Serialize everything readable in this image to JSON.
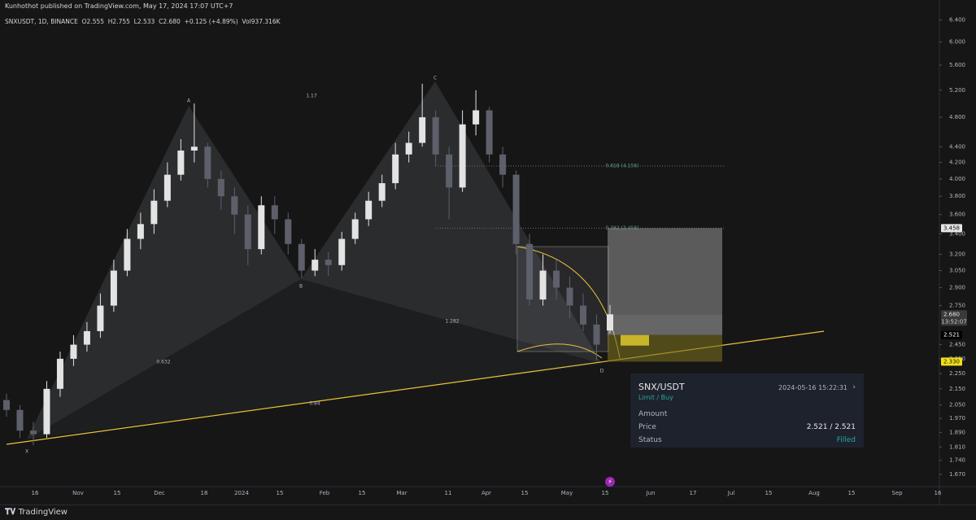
{
  "header": {
    "publisher": "Kunhothot published on TradingView.com, May 17, 2024 17:07 UTC+7",
    "symbol_line": "SNXUSDT, 1D, BINANCE  O2.555  H2.755  L2.533  C2.680  +0.125 (+4.89%)  Vol937.316K"
  },
  "chart_data": {
    "type": "candlestick",
    "log_scale": true,
    "ylim": [
      1.61,
      6.79
    ],
    "yticks": [
      {
        "value": 6.4,
        "label": "6.400"
      },
      {
        "value": 6,
        "label": "6.000"
      },
      {
        "value": 5.6,
        "label": "5.600"
      },
      {
        "value": 5.2,
        "label": "5.200"
      },
      {
        "value": 4.8,
        "label": "4.800"
      },
      {
        "value": 4.4,
        "label": "4.400"
      },
      {
        "value": 4.2,
        "label": "4.200"
      },
      {
        "value": 4,
        "label": "4.000"
      },
      {
        "value": 3.8,
        "label": "3.800"
      },
      {
        "value": 3.6,
        "label": "3.600"
      },
      {
        "value": 3.4,
        "label": "3.400"
      },
      {
        "value": 3.2,
        "label": "3.200"
      },
      {
        "value": 3.05,
        "label": "3.050"
      },
      {
        "value": 2.9,
        "label": "2.900"
      },
      {
        "value": 2.75,
        "label": "2.750"
      },
      {
        "value": 2.45,
        "label": "2.450"
      },
      {
        "value": 2.35,
        "label": "2.350"
      },
      {
        "value": 2.25,
        "label": "2.250"
      },
      {
        "value": 2.15,
        "label": "2.150"
      },
      {
        "value": 2.05,
        "label": "2.050"
      },
      {
        "value": 1.97,
        "label": "1.970"
      },
      {
        "value": 1.89,
        "label": "1.890"
      },
      {
        "value": 1.81,
        "label": "1.810"
      },
      {
        "value": 1.74,
        "label": "1.740"
      },
      {
        "value": 1.67,
        "label": "1.670"
      }
    ],
    "xtick_labels": [
      "16",
      "Nov",
      "15",
      "Dec",
      "18",
      "2024",
      "15",
      "Feb",
      "15",
      "Mar",
      "11",
      "Apr",
      "15",
      "May",
      "15",
      "Jun",
      "17",
      "Jul",
      "15",
      "Aug",
      "15",
      "Sep",
      "16"
    ],
    "up_color": "#e3e3e3",
    "down_color": "#5d606b",
    "candles": {
      "open": [
        2.08,
        2.02,
        1.9,
        1.88,
        2.15,
        2.35,
        2.45,
        2.55,
        2.75,
        3.05,
        3.35,
        3.5,
        3.75,
        4.05,
        4.35,
        4.4,
        4.0,
        3.8,
        3.6,
        3.25,
        3.7,
        3.55,
        3.3,
        3.05,
        3.15,
        3.1,
        3.35,
        3.55,
        3.75,
        3.95,
        4.3,
        4.45,
        4.8,
        4.3,
        3.9,
        4.7,
        4.9,
        4.3,
        4.05,
        3.3,
        2.8,
        3.05,
        2.9,
        2.75,
        2.6,
        2.555
      ],
      "high": [
        2.12,
        2.05,
        1.95,
        2.2,
        2.4,
        2.52,
        2.62,
        2.85,
        3.15,
        3.45,
        3.62,
        3.88,
        4.2,
        4.5,
        5.0,
        4.45,
        4.1,
        3.9,
        3.7,
        3.8,
        3.8,
        3.62,
        3.35,
        3.25,
        3.22,
        3.42,
        3.62,
        3.85,
        4.05,
        4.45,
        4.6,
        5.3,
        4.9,
        4.4,
        4.9,
        5.2,
        4.95,
        4.4,
        4.1,
        3.4,
        3.2,
        3.15,
        3.0,
        2.85,
        2.68,
        2.755
      ],
      "low": [
        1.98,
        1.86,
        1.82,
        1.86,
        2.1,
        2.3,
        2.4,
        2.5,
        2.7,
        3.0,
        3.25,
        3.4,
        3.68,
        3.98,
        4.2,
        3.9,
        3.65,
        3.4,
        3.1,
        3.2,
        3.4,
        3.2,
        2.98,
        3.0,
        3.0,
        3.05,
        3.3,
        3.48,
        3.68,
        3.88,
        4.2,
        4.4,
        4.15,
        3.55,
        3.85,
        4.55,
        4.2,
        3.9,
        3.2,
        2.75,
        2.75,
        2.8,
        2.65,
        2.55,
        2.34,
        2.533
      ],
      "close": [
        2.02,
        1.9,
        1.88,
        2.15,
        2.35,
        2.45,
        2.55,
        2.75,
        3.05,
        3.35,
        3.5,
        3.75,
        4.05,
        4.35,
        4.4,
        4.0,
        3.8,
        3.6,
        3.25,
        3.7,
        3.55,
        3.3,
        3.05,
        3.15,
        3.1,
        3.35,
        3.55,
        3.75,
        3.95,
        4.3,
        4.45,
        4.8,
        4.3,
        3.9,
        4.7,
        4.9,
        4.3,
        4.05,
        3.3,
        2.8,
        3.05,
        2.9,
        2.75,
        2.6,
        2.45,
        2.68
      ]
    },
    "fib_levels": [
      {
        "value": 4.156,
        "label": "0.618 (4.156)"
      },
      {
        "value": 3.458,
        "label": "0.382 (3.458)"
      }
    ],
    "position": {
      "target": 3.458,
      "last": {
        "value": 2.68,
        "label": "2.680"
      },
      "countdown": "13:52:07",
      "entry": 2.521,
      "stop": {
        "value": 2.33,
        "label": "2.330"
      }
    },
    "pattern": {
      "points": [
        "X",
        "A",
        "B",
        "C",
        "D"
      ],
      "ratios": [
        0.632,
        1.17,
        1.282,
        0.84
      ]
    }
  },
  "order": {
    "pair": "SNX/USDT",
    "side": "Limit / Buy",
    "time": "2024-05-16 15:22:31",
    "amount_label": "Amount",
    "price_label": "Price",
    "price": "2.521 / 2.521",
    "status_label": "Status",
    "status": "Filled"
  },
  "footer": {
    "brand": "TradingView"
  }
}
